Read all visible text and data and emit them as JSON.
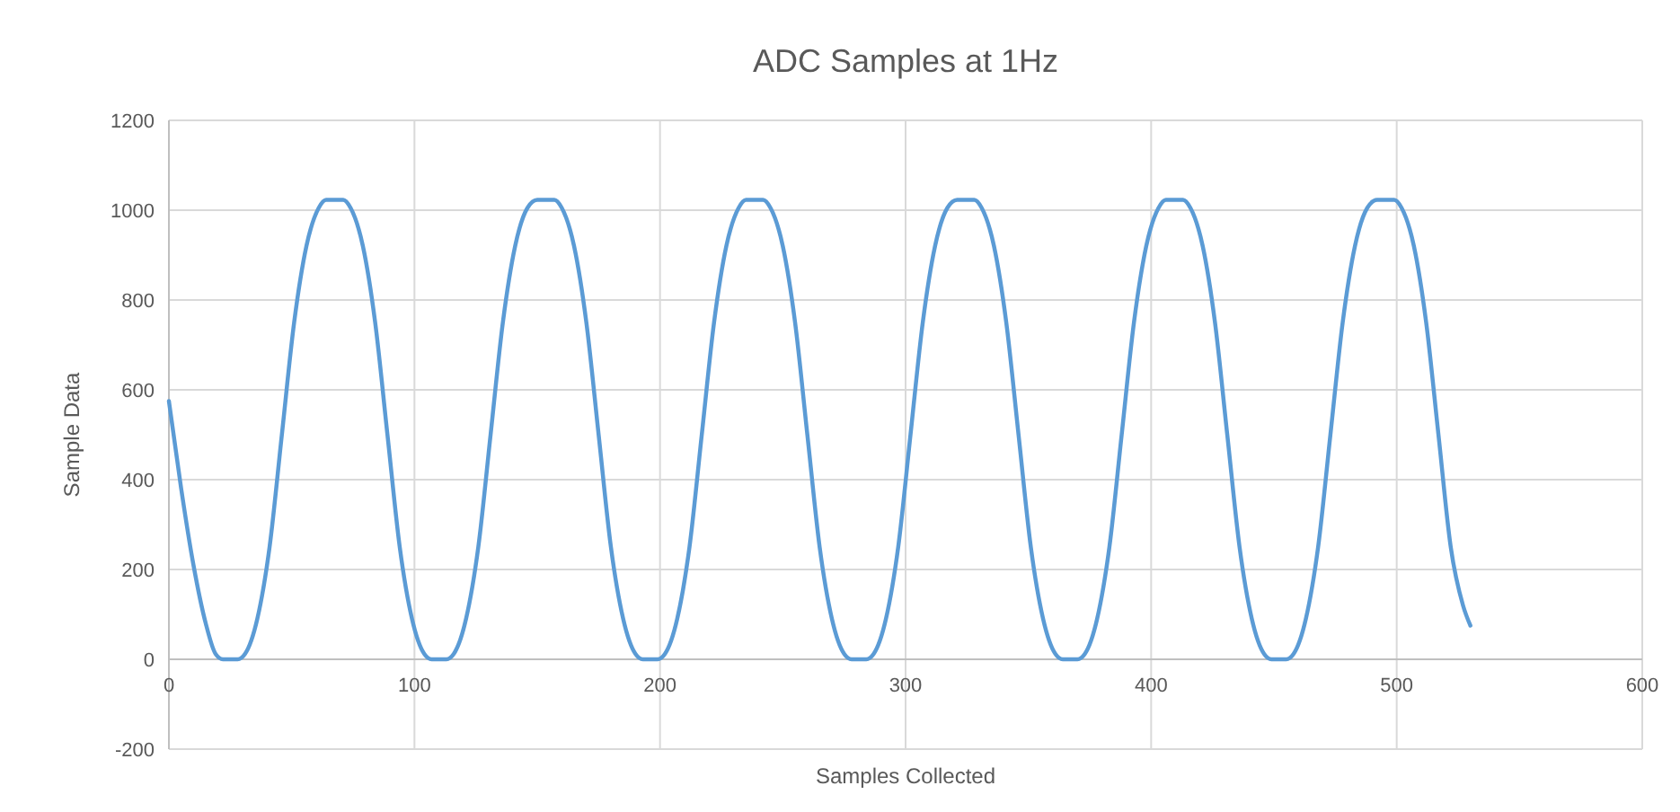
{
  "chart_data": {
    "type": "line",
    "title": "ADC Samples at 1Hz",
    "xlabel": "Samples Collected",
    "ylabel": "Sample Data",
    "xlim": [
      0,
      600
    ],
    "xticks": [
      0,
      100,
      200,
      300,
      400,
      500,
      600
    ],
    "ylim": [
      -200,
      1200
    ],
    "yticks": [
      -200,
      0,
      200,
      400,
      600,
      800,
      1000,
      1200
    ],
    "grid": true,
    "marker": "none",
    "line_style": "solid",
    "series": [
      {
        "color": "#5b9bd5",
        "x": [
          0,
          5,
          10,
          15,
          19,
          22,
          28,
          31,
          36,
          41,
          46,
          51,
          56,
          61,
          64,
          71,
          74,
          79,
          84,
          89,
          94,
          99,
          104,
          107,
          113,
          116,
          121,
          126,
          131,
          136,
          141,
          146,
          150,
          157,
          160,
          165,
          170,
          175,
          180,
          185,
          190,
          193,
          199,
          202,
          207,
          212,
          217,
          222,
          227,
          232,
          235,
          242,
          245,
          250,
          255,
          260,
          265,
          270,
          275,
          278,
          284,
          287,
          292,
          297,
          302,
          307,
          312,
          317,
          321,
          328,
          331,
          336,
          341,
          346,
          351,
          356,
          361,
          364,
          370,
          373,
          378,
          383,
          388,
          393,
          398,
          403,
          406,
          413,
          416,
          421,
          426,
          431,
          436,
          441,
          446,
          449,
          455,
          458,
          463,
          468,
          473,
          478,
          483,
          488,
          492,
          499,
          502,
          507,
          512,
          517,
          522,
          527,
          530
        ],
        "values": [
          575,
          380,
          210,
          80,
          12,
          0,
          0,
          12,
          90,
          250,
          500,
          750,
          920,
          1005,
          1023,
          1023,
          1005,
          920,
          750,
          500,
          250,
          90,
          12,
          0,
          0,
          12,
          90,
          250,
          500,
          750,
          920,
          1005,
          1023,
          1023,
          1005,
          920,
          750,
          500,
          250,
          90,
          12,
          0,
          0,
          12,
          90,
          250,
          500,
          750,
          920,
          1005,
          1023,
          1023,
          1005,
          920,
          750,
          500,
          250,
          90,
          12,
          0,
          0,
          12,
          90,
          250,
          500,
          750,
          920,
          1005,
          1023,
          1023,
          1005,
          920,
          750,
          500,
          250,
          90,
          12,
          0,
          0,
          12,
          90,
          250,
          500,
          750,
          920,
          1005,
          1023,
          1023,
          1005,
          920,
          750,
          500,
          250,
          90,
          12,
          0,
          0,
          12,
          90,
          250,
          500,
          750,
          920,
          1005,
          1023,
          1023,
          1005,
          920,
          750,
          500,
          250,
          120,
          75
        ]
      }
    ]
  }
}
